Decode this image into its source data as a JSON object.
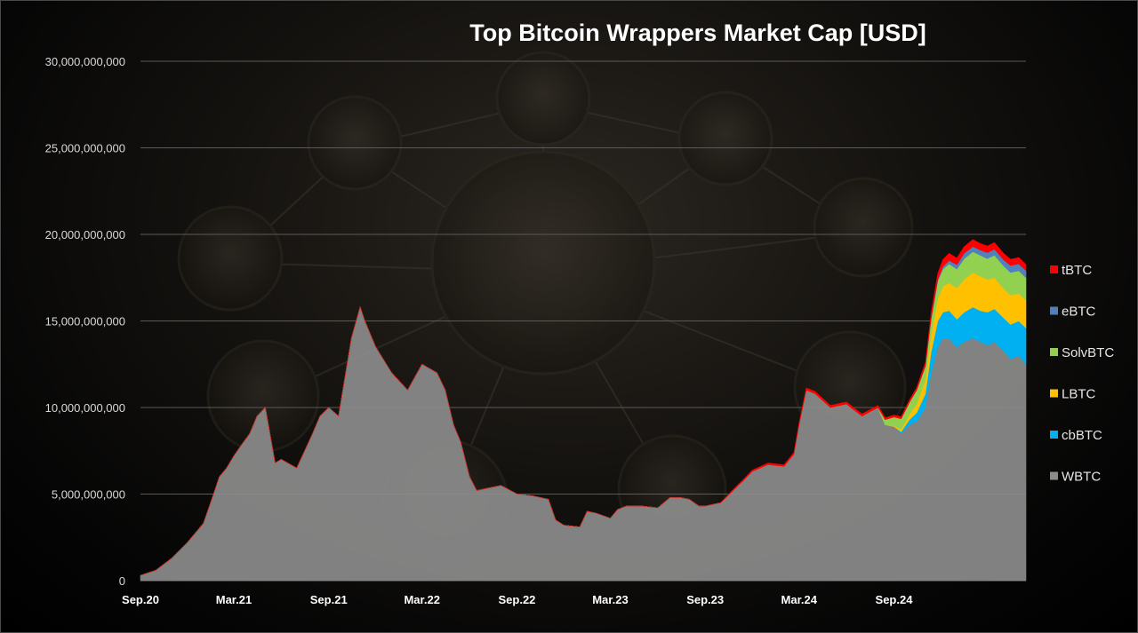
{
  "chart_data": {
    "type": "area",
    "title": "Top Bitcoin Wrappers Market Cap [USD]",
    "xlabel": "",
    "ylabel": "",
    "ylim": [
      0,
      30000000000
    ],
    "yticks": [
      0,
      5000000000,
      10000000000,
      15000000000,
      20000000000,
      25000000000,
      30000000000
    ],
    "ytick_labels": [
      "0",
      "5,000,000,000",
      "10,000,000,000",
      "15,000,000,000",
      "20,000,000,000",
      "25,000,000,000",
      "30,000,000,000"
    ],
    "xlim": [
      "2020-09-01",
      "2025-05-15"
    ],
    "xticks": [
      "2020-09-01",
      "2021-03-01",
      "2021-09-01",
      "2022-03-01",
      "2022-09-01",
      "2023-03-01",
      "2023-09-01",
      "2024-03-01",
      "2024-09-01"
    ],
    "xtick_labels": [
      "Sep.20",
      "Mar.21",
      "Sep.21",
      "Mar.22",
      "Sep.22",
      "Mar.23",
      "Sep.23",
      "Mar.24",
      "Sep.24"
    ],
    "grid": true,
    "legend_position": "right",
    "stacked": true,
    "x": [
      "2020-09-01",
      "2020-10-01",
      "2020-11-01",
      "2020-12-01",
      "2021-01-01",
      "2021-01-15",
      "2021-02-01",
      "2021-02-15",
      "2021-03-01",
      "2021-03-15",
      "2021-04-01",
      "2021-04-15",
      "2021-05-01",
      "2021-05-20",
      "2021-06-01",
      "2021-07-01",
      "2021-08-01",
      "2021-08-15",
      "2021-09-01",
      "2021-09-20",
      "2021-10-15",
      "2021-11-01",
      "2021-11-10",
      "2021-12-01",
      "2022-01-01",
      "2022-02-01",
      "2022-03-01",
      "2022-03-30",
      "2022-04-15",
      "2022-05-01",
      "2022-05-15",
      "2022-06-01",
      "2022-06-15",
      "2022-07-01",
      "2022-08-01",
      "2022-09-01",
      "2022-10-01",
      "2022-11-01",
      "2022-11-15",
      "2022-12-01",
      "2023-01-01",
      "2023-01-15",
      "2023-02-01",
      "2023-03-01",
      "2023-03-15",
      "2023-04-01",
      "2023-05-01",
      "2023-06-01",
      "2023-06-25",
      "2023-07-15",
      "2023-08-01",
      "2023-08-20",
      "2023-09-01",
      "2023-10-01",
      "2023-10-25",
      "2023-11-15",
      "2023-12-01",
      "2024-01-01",
      "2024-02-01",
      "2024-02-20",
      "2024-03-01",
      "2024-03-15",
      "2024-04-01",
      "2024-05-01",
      "2024-06-01",
      "2024-07-01",
      "2024-08-01",
      "2024-08-15",
      "2024-09-01",
      "2024-09-15",
      "2024-10-01",
      "2024-10-15",
      "2024-11-01",
      "2024-11-12",
      "2024-11-25",
      "2024-12-05",
      "2024-12-17",
      "2025-01-01",
      "2025-01-15",
      "2025-02-01",
      "2025-02-15",
      "2025-03-01",
      "2025-03-15",
      "2025-04-01",
      "2025-04-15",
      "2025-05-01",
      "2025-05-15"
    ],
    "series": [
      {
        "name": "WBTC",
        "color": "#8c8c8c",
        "values": [
          300000000,
          600000000,
          1300000000,
          2200000000,
          3300000000,
          4500000000,
          6000000000,
          6500000000,
          7200000000,
          7800000000,
          8500000000,
          9500000000,
          10000000000,
          6800000000,
          7000000000,
          6500000000,
          8500000000,
          9500000000,
          10000000000,
          9500000000,
          14000000000,
          15800000000,
          15000000000,
          13500000000,
          12000000000,
          11000000000,
          12500000000,
          12000000000,
          11000000000,
          9000000000,
          8000000000,
          6000000000,
          5200000000,
          5300000000,
          5500000000,
          5000000000,
          4900000000,
          4700000000,
          3500000000,
          3200000000,
          3100000000,
          4000000000,
          3900000000,
          3600000000,
          4100000000,
          4300000000,
          4300000000,
          4200000000,
          4800000000,
          4800000000,
          4700000000,
          4300000000,
          4300000000,
          4500000000,
          5200000000,
          5800000000,
          6300000000,
          6700000000,
          6600000000,
          7300000000,
          9000000000,
          11000000000,
          10800000000,
          10000000000,
          10200000000,
          9500000000,
          10000000000,
          9000000000,
          8900000000,
          8500000000,
          9000000000,
          9200000000,
          10000000000,
          12000000000,
          13500000000,
          14000000000,
          14000000000,
          13500000000,
          13800000000,
          14000000000,
          13800000000,
          13600000000,
          13800000000,
          13300000000,
          12800000000,
          13000000000,
          12500000000
        ]
      },
      {
        "name": "cbBTC",
        "color": "#00b0f0",
        "values": [
          0,
          0,
          0,
          0,
          0,
          0,
          0,
          0,
          0,
          0,
          0,
          0,
          0,
          0,
          0,
          0,
          0,
          0,
          0,
          0,
          0,
          0,
          0,
          0,
          0,
          0,
          0,
          0,
          0,
          0,
          0,
          0,
          0,
          0,
          0,
          0,
          0,
          0,
          0,
          0,
          0,
          0,
          0,
          0,
          0,
          0,
          0,
          0,
          0,
          0,
          0,
          0,
          0,
          0,
          0,
          0,
          0,
          0,
          0,
          0,
          0,
          0,
          0,
          0,
          0,
          0,
          0,
          0,
          0,
          100000000,
          300000000,
          500000000,
          800000000,
          1200000000,
          1500000000,
          1500000000,
          1600000000,
          1600000000,
          1700000000,
          1800000000,
          1800000000,
          1900000000,
          1900000000,
          1900000000,
          2000000000,
          2000000000,
          2100000000
        ]
      },
      {
        "name": "LBTC",
        "color": "#ffc000",
        "values": [
          0,
          0,
          0,
          0,
          0,
          0,
          0,
          0,
          0,
          0,
          0,
          0,
          0,
          0,
          0,
          0,
          0,
          0,
          0,
          0,
          0,
          0,
          0,
          0,
          0,
          0,
          0,
          0,
          0,
          0,
          0,
          0,
          0,
          0,
          0,
          0,
          0,
          0,
          0,
          0,
          0,
          0,
          0,
          0,
          0,
          0,
          0,
          0,
          0,
          0,
          0,
          0,
          0,
          0,
          0,
          0,
          0,
          0,
          0,
          0,
          0,
          0,
          0,
          0,
          0,
          0,
          0,
          0,
          50000000,
          150000000,
          300000000,
          500000000,
          800000000,
          1000000000,
          1300000000,
          1500000000,
          1600000000,
          1800000000,
          1900000000,
          2000000000,
          2000000000,
          1900000000,
          1800000000,
          1700000000,
          1700000000,
          1600000000,
          1600000000
        ]
      },
      {
        "name": "SolvBTC",
        "color": "#92d050",
        "values": [
          0,
          0,
          0,
          0,
          0,
          0,
          0,
          0,
          0,
          0,
          0,
          0,
          0,
          0,
          0,
          0,
          0,
          0,
          0,
          0,
          0,
          0,
          0,
          0,
          0,
          0,
          0,
          0,
          0,
          0,
          0,
          0,
          0,
          0,
          0,
          0,
          0,
          0,
          0,
          0,
          0,
          0,
          0,
          0,
          0,
          0,
          0,
          0,
          0,
          0,
          0,
          0,
          0,
          0,
          0,
          0,
          0,
          0,
          0,
          0,
          0,
          0,
          0,
          0,
          0,
          0,
          0,
          300000000,
          500000000,
          600000000,
          700000000,
          800000000,
          800000000,
          900000000,
          1000000000,
          1000000000,
          1100000000,
          1100000000,
          1200000000,
          1200000000,
          1200000000,
          1200000000,
          1300000000,
          1300000000,
          1300000000,
          1300000000,
          1300000000
        ]
      },
      {
        "name": "eBTC",
        "color": "#4f81bd",
        "values": [
          0,
          0,
          0,
          0,
          0,
          0,
          0,
          0,
          0,
          0,
          0,
          0,
          0,
          0,
          0,
          0,
          0,
          0,
          0,
          0,
          0,
          0,
          0,
          0,
          0,
          0,
          0,
          0,
          0,
          0,
          0,
          0,
          0,
          0,
          0,
          0,
          0,
          0,
          0,
          0,
          0,
          0,
          0,
          0,
          0,
          0,
          0,
          0,
          0,
          0,
          0,
          0,
          0,
          0,
          0,
          0,
          0,
          0,
          0,
          0,
          0,
          0,
          0,
          0,
          0,
          0,
          0,
          0,
          0,
          0,
          0,
          0,
          0,
          50000000,
          100000000,
          150000000,
          200000000,
          250000000,
          300000000,
          300000000,
          300000000,
          350000000,
          350000000,
          350000000,
          400000000,
          400000000,
          400000000
        ]
      },
      {
        "name": "tBTC",
        "color": "#ff0000",
        "values": [
          0,
          0,
          0,
          0,
          0,
          0,
          0,
          0,
          0,
          0,
          0,
          0,
          0,
          0,
          0,
          0,
          0,
          0,
          0,
          0,
          0,
          0,
          0,
          0,
          0,
          0,
          0,
          0,
          0,
          0,
          0,
          0,
          0,
          0,
          0,
          0,
          0,
          0,
          0,
          0,
          0,
          0,
          0,
          0,
          0,
          0,
          0,
          0,
          0,
          0,
          0,
          0,
          0,
          0,
          60000000,
          70000000,
          80000000,
          90000000,
          90000000,
          100000000,
          120000000,
          130000000,
          130000000,
          120000000,
          120000000,
          120000000,
          120000000,
          110000000,
          110000000,
          120000000,
          130000000,
          150000000,
          200000000,
          300000000,
          350000000,
          400000000,
          400000000,
          380000000,
          380000000,
          400000000,
          380000000,
          380000000,
          380000000,
          370000000,
          360000000,
          360000000,
          350000000
        ]
      }
    ],
    "legend_order": [
      "tBTC",
      "eBTC",
      "SolvBTC",
      "LBTC",
      "cbBTC",
      "WBTC"
    ]
  }
}
